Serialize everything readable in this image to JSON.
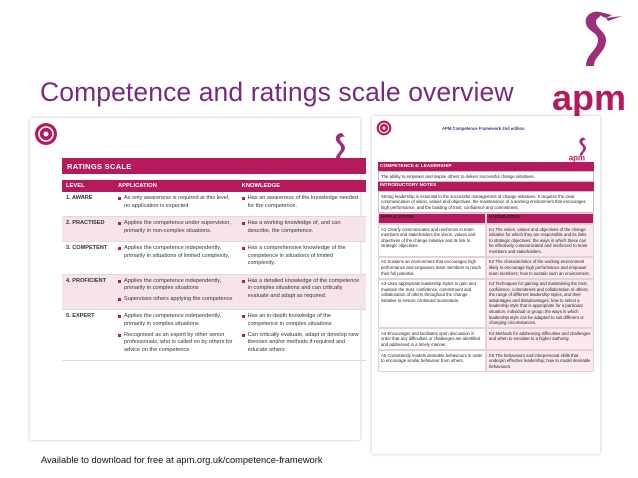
{
  "slide": {
    "title": "Competence and ratings scale overview",
    "footer": "Available to download for free at apm.org.uk/competence-framework",
    "logo_text": "apm",
    "accent_color": "#b51a5d",
    "title_color": "#7a2a7d"
  },
  "ratings": {
    "heading": "RATINGS SCALE",
    "columns": [
      "LEVEL",
      "APPLICATION",
      "KNOWLEDGE"
    ],
    "rows": [
      {
        "level": "1.  AWARE",
        "application": [
          "As only awareness is required at this level, no application is expected"
        ],
        "knowledge": [
          "Has an awareness of the knowledge needed for the competence."
        ]
      },
      {
        "level": "2.  PRACTISED",
        "application": [
          "Applies the competence under supervision, primarily in non-complex situations."
        ],
        "knowledge": [
          "Has a working knowledge of, and can describe, the competence."
        ]
      },
      {
        "level": "3.  COMPETENT",
        "application": [
          "Applies the competence independently, primarily in situations of limited complexity."
        ],
        "knowledge": [
          "Has a comprehensive knowledge of the competence in situations of limited complexity."
        ]
      },
      {
        "level": "4.  PROFICIENT",
        "application": [
          "Applies the competence independently, primarily in complex situations",
          "Supervises others applying the competence"
        ],
        "knowledge": [
          "Has a detailed knowledge of the competence in complex situations and can critically evaluate and adapt as required."
        ]
      },
      {
        "level": "5.  EXPERT",
        "application": [
          "Applies the competence independently, primarily in complex situations",
          "Recognised as an expert by other senior professionals, who is called on by others for advice on the competence"
        ],
        "knowledge": [
          "Has an in-depth knowledge of the competence in complex situations",
          "Can critically evaluate, adapt or develop new theories and/or methods if required and educate others"
        ]
      }
    ]
  },
  "framework": {
    "header": "APM Competence Framework 2nd edition",
    "competence_title": "COMPETENCE 4: LEADERSHIP",
    "competence_desc": "The ability to empower and inspire others to deliver successful change initiatives.",
    "notes_title": "INTRODUCTORY NOTES",
    "notes_text": "Strong leadership is essential to the successful management of change initiatives. It requires the clear communication of vision, values and objectives, the maintenance of a working environment that encourages high performance, and the building of trust, confidence and commitment.",
    "columns": [
      "APPLICATION",
      "KNOWLEDGE"
    ],
    "rows": [
      {
        "app": "A1 Clearly communicates and reinforces to team members and stakeholders the vision, values and objectives of the change initiative and its link to strategic objectives.",
        "know": "K1 The vision, values and objectives of the change initiative for which they are responsible and its links to strategic objectives; the ways in which these can be effectively communicated and reinforced to team members and stakeholders."
      },
      {
        "app": "A2 Sustains an environment that encourages high performance and empowers team members to reach their full potential.",
        "know": "K2 The characteristics of the working environment likely to encourage high performance and empower team members; how to sustain such an environment."
      },
      {
        "app": "A3 Uses appropriate leadership styles to gain and maintain the trust, confidence, commitment and collaboration of others throughout the change initiative to ensure continued momentum.",
        "know": "K3 Techniques for gaining and maintaining the trust, confidence, commitment and collaboration of others; the range of different leadership styles, and their advantages and disadvantages; how to select a leadership style that is appropriate for a particular situation, individual or group; the ways in which leadership style can be adapted to suit different or changing circumstances."
      },
      {
        "app": "A4 Encourages and facilitates open discussion in order that any difficulties or challenges are identified and addressed in a timely manner.",
        "know": "K4 Methods for addressing difficulties and challenges and when to escalate to a higher authority."
      },
      {
        "app": "A5 Consistently models desirable behaviours in order to encourage similar behaviour from others.",
        "know": "K5 The behaviours and interpersonal skills that underpin effective leadership; how to model desirable behaviours."
      }
    ]
  }
}
